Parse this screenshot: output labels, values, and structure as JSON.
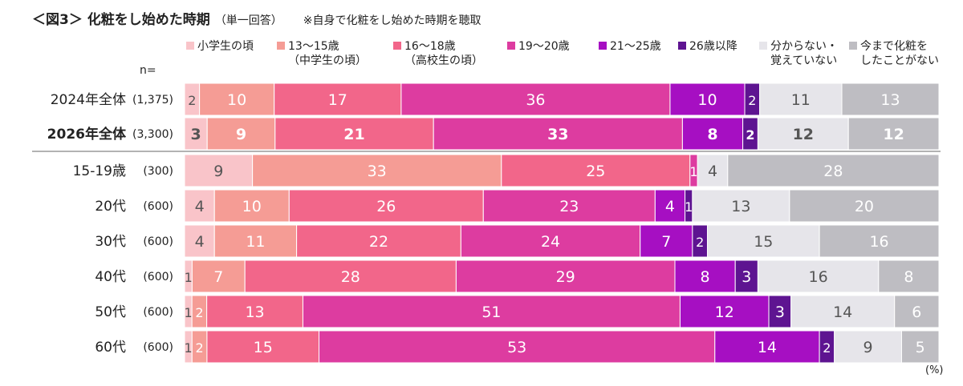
{
  "title": "＜図3＞ 化粧をし始めた時期",
  "subtitle": "（単一回答）",
  "note": "※自身で化粧をし始めた時期を聴取",
  "n_label": "n=",
  "unit_label": "(%)",
  "legend": [
    {
      "line1": "小学生の頃",
      "line2": "",
      "color": "#F9C4C9"
    },
    {
      "line1": "13～15歳",
      "line2": "（中学生の頃）",
      "color": "#F59C95"
    },
    {
      "line1": "16～18歳",
      "line2": "（高校生の頃）",
      "color": "#F2668A"
    },
    {
      "line1": "19～20歳",
      "line2": "",
      "color": "#DD3CA0"
    },
    {
      "line1": "21～25歳",
      "line2": "",
      "color": "#A60FC2"
    },
    {
      "line1": "26歳以降",
      "line2": "",
      "color": "#5E1491"
    },
    {
      "line1": "分からない・",
      "line2": "覚えていない",
      "color": "#E6E5EA"
    },
    {
      "line1": "今まで化粧を",
      "line2": "したことがない",
      "color": "#BEBDC2"
    }
  ],
  "chart_data": {
    "type": "bar",
    "orientation": "horizontal-stacked-100",
    "xlim": [
      0,
      100
    ],
    "categories": [
      "2024年全体",
      "2026年全体",
      "15-19歳",
      "20代",
      "30代",
      "40代",
      "50代",
      "60代"
    ],
    "n": [
      "(1,375)",
      "(3,300)",
      "(300)",
      "(600)",
      "(600)",
      "(600)",
      "(600)",
      "(600)"
    ],
    "bold_rows": [
      1
    ],
    "series": [
      {
        "name": "小学生の頃",
        "values": [
          2,
          3,
          9,
          4,
          4,
          1,
          1,
          1
        ]
      },
      {
        "name": "13～15歳（中学生の頃）",
        "values": [
          10,
          9,
          33,
          10,
          11,
          7,
          2,
          2
        ]
      },
      {
        "name": "16～18歳（高校生の頃）",
        "values": [
          17,
          21,
          25,
          26,
          22,
          28,
          13,
          15
        ]
      },
      {
        "name": "19～20歳",
        "values": [
          36,
          33,
          1,
          23,
          24,
          29,
          51,
          53
        ]
      },
      {
        "name": "21～25歳",
        "values": [
          10,
          8,
          0,
          4,
          7,
          8,
          12,
          14
        ]
      },
      {
        "name": "26歳以降",
        "values": [
          2,
          2,
          0,
          1,
          2,
          3,
          3,
          2
        ]
      },
      {
        "name": "分からない・覚えていない",
        "values": [
          11,
          12,
          4,
          13,
          15,
          16,
          14,
          9
        ]
      },
      {
        "name": "今まで化粧をしたことがない",
        "values": [
          13,
          12,
          28,
          20,
          16,
          8,
          6,
          5
        ]
      }
    ],
    "label_colors": [
      "#555555",
      "#ffffff",
      "#ffffff",
      "#ffffff",
      "#ffffff",
      "#ffffff",
      "#555555",
      "#ffffff"
    ]
  }
}
